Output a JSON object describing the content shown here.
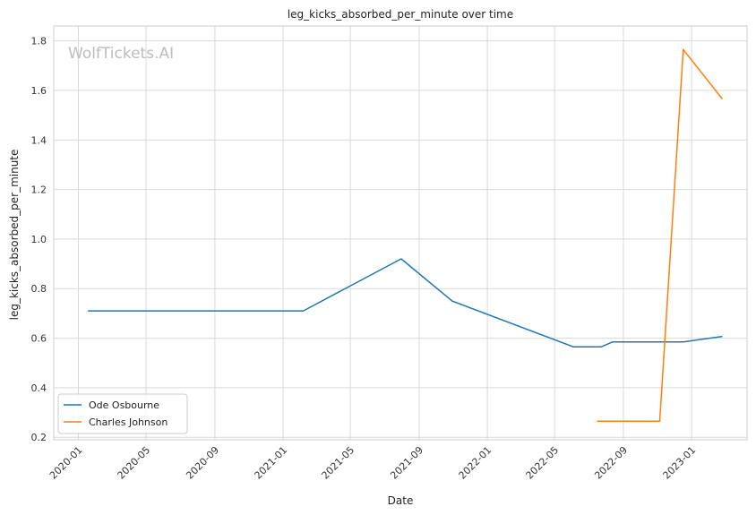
{
  "chart_data": {
    "type": "line",
    "title": "leg_kicks_absorbed_per_minute over time",
    "xlabel": "Date",
    "ylabel": "leg_kicks_absorbed_per_minute",
    "watermark": "WolfTickets.AI",
    "x_ticks": [
      "2020-01",
      "2020-05",
      "2020-09",
      "2021-01",
      "2021-05",
      "2021-09",
      "2022-01",
      "2022-05",
      "2022-09",
      "2023-01"
    ],
    "y_ticks": [
      "0.2",
      "0.4",
      "0.6",
      "0.8",
      "1.0",
      "1.2",
      "1.4",
      "1.6",
      "1.8"
    ],
    "xlim": [
      "2019-11-18",
      "2023-04-10"
    ],
    "ylim": [
      0.19,
      1.86
    ],
    "grid": true,
    "legend_position": "lower-left",
    "series": [
      {
        "name": "Ode Osbourne",
        "color": "#1f77b4",
        "points": [
          {
            "x": "2020-01-18",
            "y": 0.71
          },
          {
            "x": "2021-02-06",
            "y": 0.71
          },
          {
            "x": "2021-07-31",
            "y": 0.92
          },
          {
            "x": "2021-10-30",
            "y": 0.75
          },
          {
            "x": "2022-06-04",
            "y": 0.565
          },
          {
            "x": "2022-07-23",
            "y": 0.565
          },
          {
            "x": "2022-08-13",
            "y": 0.585
          },
          {
            "x": "2022-12-17",
            "y": 0.585
          },
          {
            "x": "2023-02-25",
            "y": 0.607
          }
        ]
      },
      {
        "name": "Charles Johnson",
        "color": "#ff7f0e",
        "points": [
          {
            "x": "2022-07-16",
            "y": 0.265
          },
          {
            "x": "2022-11-05",
            "y": 0.265
          },
          {
            "x": "2022-12-17",
            "y": 1.765
          },
          {
            "x": "2023-02-25",
            "y": 1.565
          }
        ]
      }
    ]
  }
}
